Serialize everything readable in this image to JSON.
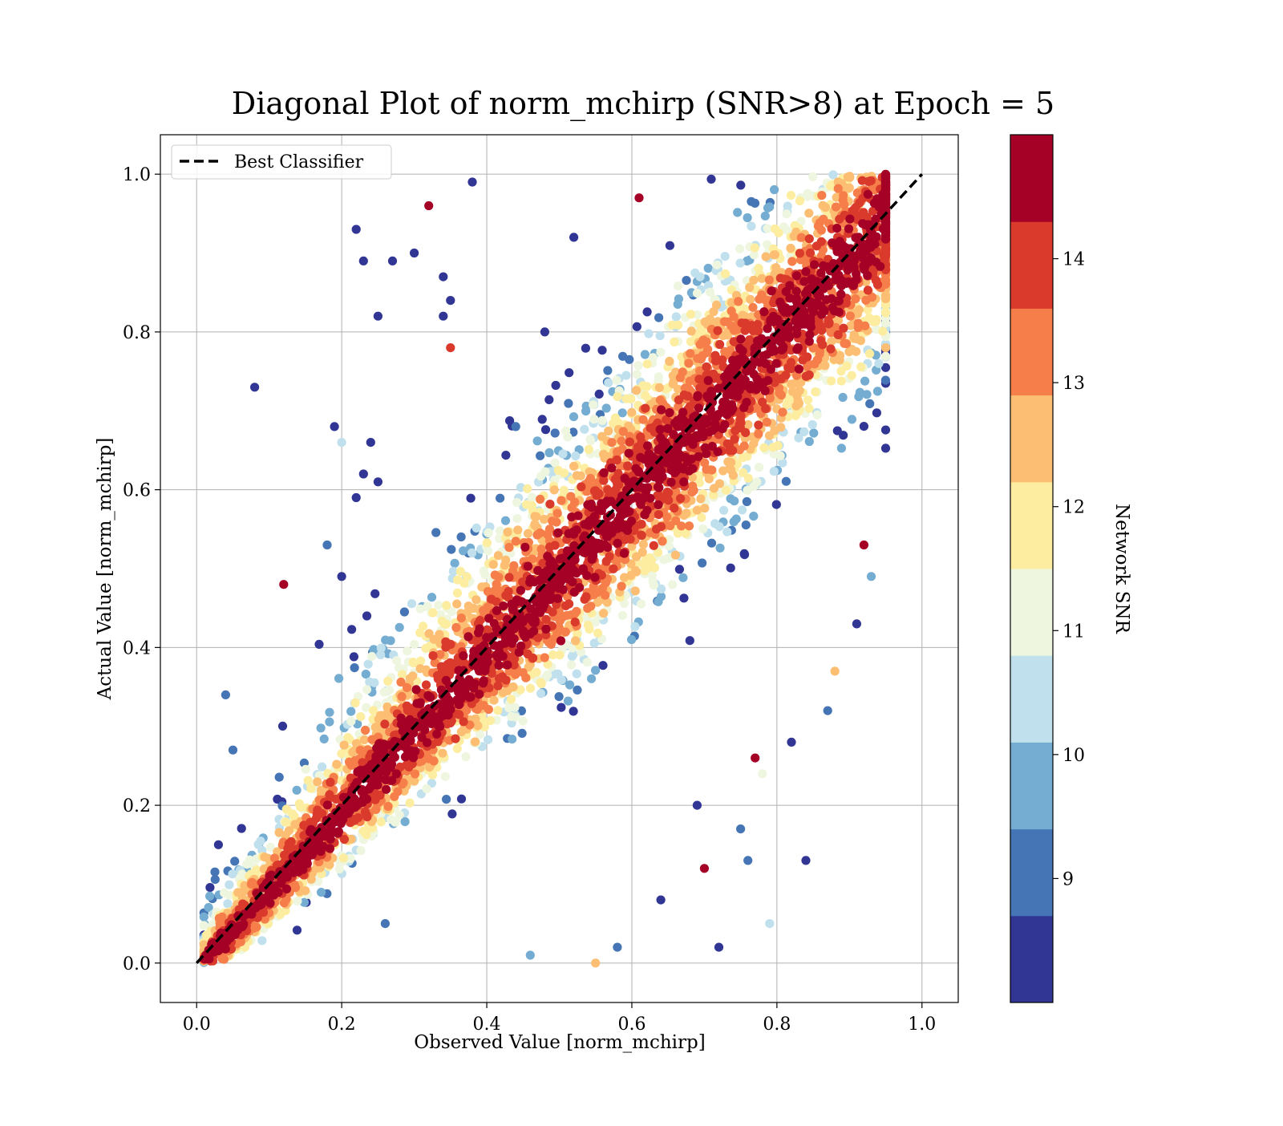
{
  "chart_data": {
    "type": "scatter",
    "title": "Diagonal Plot of norm_mchirp (SNR>8) at Epoch = 5",
    "xlabel": "Observed Value [norm_mchirp]",
    "ylabel": "Actual Value [norm_mchirp]",
    "xlim": [
      -0.05,
      1.05
    ],
    "ylim": [
      -0.05,
      1.05
    ],
    "xticks": [
      "0.0",
      "0.2",
      "0.4",
      "0.6",
      "0.8",
      "1.0"
    ],
    "yticks": [
      "0.0",
      "0.2",
      "0.4",
      "0.6",
      "0.8",
      "1.0"
    ],
    "grid": true,
    "legend": {
      "position": "upper-left",
      "entries": [
        {
          "label": "Best Classifier",
          "style": "dashed",
          "color": "#000000"
        }
      ]
    },
    "reference_line": {
      "name": "Best Classifier",
      "x": [
        0,
        1
      ],
      "y": [
        0,
        1
      ]
    },
    "colorbar": {
      "label": "Network SNR",
      "range": [
        8,
        15
      ],
      "ticks": [
        "9",
        "10",
        "11",
        "12",
        "13",
        "14"
      ],
      "colors": [
        "#313695",
        "#4575b4",
        "#74add1",
        "#abd9e9",
        "#e0f3f8",
        "#ffffbf",
        "#fee090",
        "#fdae61",
        "#f46d43",
        "#d73027",
        "#a50026"
      ],
      "bands": [
        {
          "lo": 8.0,
          "hi": 8.7,
          "color": "#313695"
        },
        {
          "lo": 8.7,
          "hi": 9.4,
          "color": "#4575b4"
        },
        {
          "lo": 9.4,
          "hi": 10.1,
          "color": "#74add1"
        },
        {
          "lo": 10.1,
          "hi": 10.8,
          "color": "#bfe0ec"
        },
        {
          "lo": 10.8,
          "hi": 11.5,
          "color": "#eef6e0"
        },
        {
          "lo": 11.5,
          "hi": 12.2,
          "color": "#fdeda0"
        },
        {
          "lo": 12.2,
          "hi": 12.9,
          "color": "#fcbe72"
        },
        {
          "lo": 12.9,
          "hi": 13.6,
          "color": "#f57e4a"
        },
        {
          "lo": 13.6,
          "hi": 14.3,
          "color": "#d93a2c"
        },
        {
          "lo": 14.3,
          "hi": 15.0,
          "color": "#a50026"
        }
      ]
    },
    "series": [
      {
        "colored_by": "Network SNR",
        "points": [
          [
            0.08,
            0.73,
            8.2
          ],
          [
            0.22,
            0.93,
            8.3
          ],
          [
            0.23,
            0.89,
            8.2
          ],
          [
            0.27,
            0.89,
            8.1
          ],
          [
            0.3,
            0.9,
            8.3
          ],
          [
            0.34,
            0.87,
            8.2
          ],
          [
            0.35,
            0.84,
            8.1
          ],
          [
            0.25,
            0.82,
            8.3
          ],
          [
            0.34,
            0.82,
            8.0
          ],
          [
            0.35,
            0.78,
            13.9
          ],
          [
            0.32,
            0.96,
            14.9
          ],
          [
            0.38,
            0.99,
            8.2
          ],
          [
            0.12,
            0.48,
            14.8
          ],
          [
            0.04,
            0.34,
            9.0
          ],
          [
            0.18,
            0.53,
            8.7
          ],
          [
            0.2,
            0.49,
            8.2
          ],
          [
            0.19,
            0.68,
            8.2
          ],
          [
            0.2,
            0.66,
            10.1
          ],
          [
            0.24,
            0.66,
            8.1
          ],
          [
            0.23,
            0.62,
            8.2
          ],
          [
            0.25,
            0.61,
            8.3
          ],
          [
            0.22,
            0.59,
            8.1
          ],
          [
            0.82,
            0.28,
            8.1
          ],
          [
            0.84,
            0.13,
            8.2
          ],
          [
            0.87,
            0.32,
            9.0
          ],
          [
            0.88,
            0.37,
            12.5
          ],
          [
            0.79,
            0.05,
            10.4
          ],
          [
            0.72,
            0.02,
            8.1
          ],
          [
            0.7,
            0.12,
            14.7
          ],
          [
            0.75,
            0.17,
            9.2
          ],
          [
            0.76,
            0.13,
            9.0
          ],
          [
            0.78,
            0.24,
            10.8
          ],
          [
            0.69,
            0.2,
            8.1
          ],
          [
            0.77,
            0.26,
            14.8
          ],
          [
            0.61,
            0.97,
            14.8
          ],
          [
            0.95,
            0.93,
            14.9
          ],
          [
            0.95,
            0.78,
            12.3
          ],
          [
            0.93,
            0.49,
            9.8
          ],
          [
            0.91,
            0.43,
            8.3
          ],
          [
            0.92,
            0.53,
            14.8
          ],
          [
            0.03,
            0.15,
            8.2
          ],
          [
            0.05,
            0.27,
            9.0
          ],
          [
            0.26,
            0.05,
            9.3
          ],
          [
            0.46,
            0.01,
            9.8
          ],
          [
            0.55,
            0.0,
            12.5
          ],
          [
            0.44,
            0.68,
            8.7
          ],
          [
            0.48,
            0.8,
            8.4
          ],
          [
            0.52,
            0.92,
            8.2
          ],
          [
            0.58,
            0.02,
            9.0
          ],
          [
            0.64,
            0.08,
            8.2
          ]
        ]
      }
    ]
  }
}
